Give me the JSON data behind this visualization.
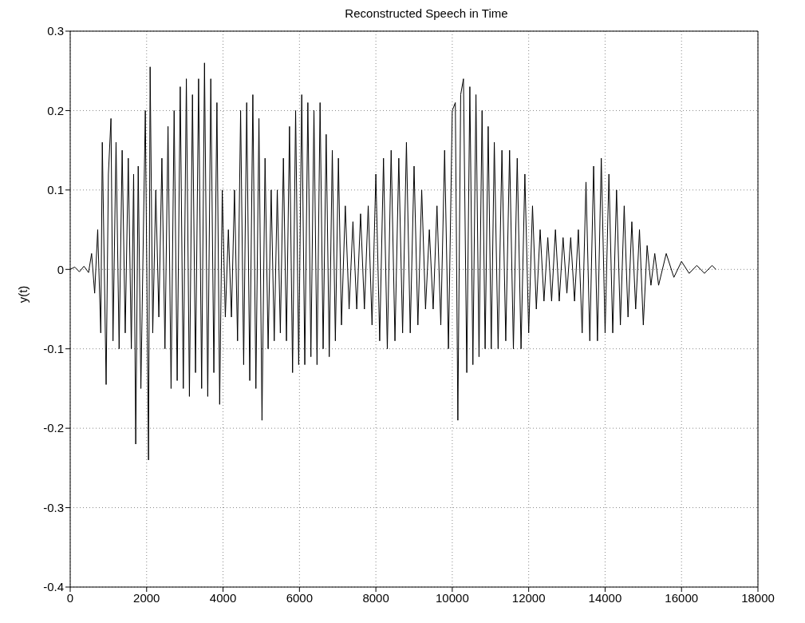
{
  "chart_data": {
    "type": "line",
    "title": "Reconstructed Speech in Time",
    "ylabel": "y(t)",
    "x": [
      0,
      120,
      240,
      360,
      480,
      560,
      640,
      720,
      800,
      840,
      940,
      1000,
      1067,
      1120,
      1200,
      1280,
      1360,
      1440,
      1520,
      1600,
      1660,
      1715,
      1780,
      1850,
      1966,
      2050,
      2092,
      2160,
      2240,
      2320,
      2400,
      2480,
      2560,
      2640,
      2720,
      2800,
      2880,
      2960,
      3040,
      3120,
      3200,
      3280,
      3360,
      3440,
      3515,
      3600,
      3680,
      3760,
      3840,
      3912,
      3980,
      4060,
      4140,
      4220,
      4300,
      4380,
      4460,
      4540,
      4620,
      4700,
      4780,
      4860,
      4940,
      5020,
      5100,
      5180,
      5260,
      5340,
      5420,
      5500,
      5580,
      5660,
      5740,
      5820,
      5900,
      5980,
      6060,
      6140,
      6220,
      6300,
      6380,
      6460,
      6540,
      6620,
      6700,
      6780,
      6860,
      6940,
      7020,
      7100,
      7200,
      7300,
      7400,
      7500,
      7600,
      7700,
      7800,
      7900,
      8000,
      8100,
      8200,
      8300,
      8400,
      8500,
      8600,
      8700,
      8800,
      8900,
      9000,
      9100,
      9200,
      9300,
      9400,
      9500,
      9600,
      9700,
      9800,
      9900,
      10000,
      10080,
      10146,
      10220,
      10293,
      10380,
      10460,
      10540,
      10620,
      10700,
      10780,
      10860,
      10940,
      11020,
      11100,
      11200,
      11300,
      11400,
      11500,
      11600,
      11700,
      11800,
      11900,
      12000,
      12100,
      12200,
      12300,
      12400,
      12500,
      12600,
      12700,
      12800,
      12900,
      13000,
      13100,
      13200,
      13300,
      13400,
      13500,
      13600,
      13700,
      13800,
      13900,
      14000,
      14100,
      14200,
      14300,
      14400,
      14500,
      14600,
      14700,
      14800,
      14900,
      15000,
      15100,
      15200,
      15300,
      15400,
      15600,
      15800,
      16000,
      16200,
      16400,
      16600,
      16800,
      16900
    ],
    "series": [
      {
        "color": "#000000",
        "values": [
          0,
          0.003,
          -0.003,
          0.004,
          -0.004,
          0.02,
          -0.03,
          0.05,
          -0.08,
          0.16,
          -0.145,
          0.12,
          0.19,
          -0.09,
          0.16,
          -0.1,
          0.15,
          -0.08,
          0.14,
          -0.1,
          0.12,
          -0.22,
          0.13,
          -0.15,
          0.2,
          -0.24,
          0.255,
          -0.08,
          0.1,
          -0.06,
          0.14,
          -0.1,
          0.18,
          -0.15,
          0.2,
          -0.14,
          0.23,
          -0.15,
          0.24,
          -0.16,
          0.22,
          -0.13,
          0.24,
          -0.15,
          0.26,
          -0.16,
          0.24,
          -0.13,
          0.21,
          -0.17,
          0.1,
          -0.06,
          0.05,
          -0.06,
          0.1,
          -0.09,
          0.2,
          -0.12,
          0.21,
          -0.14,
          0.22,
          -0.15,
          0.19,
          -0.19,
          0.14,
          -0.1,
          0.1,
          -0.09,
          0.1,
          -0.08,
          0.14,
          -0.09,
          0.18,
          -0.13,
          0.2,
          -0.12,
          0.22,
          -0.12,
          0.21,
          -0.11,
          0.2,
          -0.12,
          0.21,
          -0.1,
          0.17,
          -0.11,
          0.15,
          -0.09,
          0.14,
          -0.07,
          0.08,
          -0.05,
          0.06,
          -0.05,
          0.07,
          -0.05,
          0.08,
          -0.07,
          0.12,
          -0.09,
          0.14,
          -0.1,
          0.15,
          -0.09,
          0.14,
          -0.08,
          0.16,
          -0.08,
          0.13,
          -0.07,
          0.1,
          -0.05,
          0.05,
          -0.05,
          0.08,
          -0.07,
          0.15,
          -0.1,
          0.2,
          0.21,
          -0.19,
          0.22,
          0.24,
          -0.13,
          0.23,
          -0.12,
          0.22,
          -0.11,
          0.2,
          -0.1,
          0.18,
          -0.1,
          0.16,
          -0.1,
          0.15,
          -0.09,
          0.15,
          -0.1,
          0.14,
          -0.1,
          0.12,
          -0.08,
          0.08,
          -0.05,
          0.05,
          -0.04,
          0.04,
          -0.04,
          0.05,
          -0.04,
          0.04,
          -0.03,
          0.04,
          -0.04,
          0.05,
          -0.08,
          0.11,
          -0.09,
          0.13,
          -0.09,
          0.14,
          -0.08,
          0.12,
          -0.08,
          0.1,
          -0.07,
          0.08,
          -0.06,
          0.06,
          -0.05,
          0.05,
          -0.07,
          0.03,
          -0.02,
          0.02,
          -0.02,
          0.02,
          -0.01,
          0.01,
          -0.005,
          0.005,
          -0.005,
          0.005,
          0
        ]
      }
    ],
    "xlim": [
      0,
      18000
    ],
    "xticks": [
      0,
      2000,
      4000,
      6000,
      8000,
      10000,
      12000,
      14000,
      16000,
      18000
    ],
    "ylim": [
      -0.4,
      0.3
    ],
    "yticks": [
      -0.4,
      -0.3,
      -0.2,
      -0.1,
      0,
      0.1,
      0.2,
      0.3
    ],
    "grid": true,
    "marker": "none",
    "line_style": "solid"
  }
}
